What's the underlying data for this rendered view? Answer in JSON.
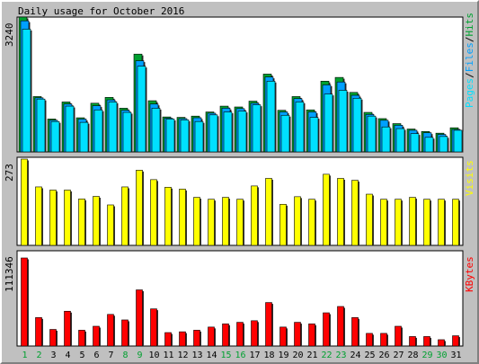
{
  "title": "Daily usage for October 2016",
  "colors": {
    "hits": "#00a030",
    "files": "#00a0ff",
    "pages": "#00e0ff",
    "visits": "#ffff00",
    "kbytes": "#ff0000",
    "weekend_label": "#00a030",
    "weekday_label": "#000000"
  },
  "chart_data": [
    {
      "type": "bar",
      "name_label_parts": [
        "Pages",
        "/",
        "Files",
        "/",
        "Hits"
      ],
      "max_label": "3240",
      "ymax": 3240,
      "categories": [
        "1",
        "2",
        "3",
        "4",
        "5",
        "6",
        "7",
        "8",
        "9",
        "10",
        "11",
        "12",
        "13",
        "14",
        "15",
        "16",
        "17",
        "18",
        "19",
        "20",
        "21",
        "22",
        "23",
        "24",
        "25",
        "26",
        "27",
        "28",
        "29",
        "30",
        "31"
      ],
      "weekend_days": [
        "1",
        "2",
        "8",
        "9",
        "15",
        "16",
        "22",
        "23",
        "29",
        "30"
      ],
      "series": [
        {
          "name": "Hits",
          "values": [
            3240,
            1330,
            790,
            1200,
            820,
            1170,
            1310,
            1050,
            2350,
            1230,
            840,
            830,
            860,
            960,
            1100,
            1080,
            1220,
            1870,
            1000,
            1330,
            1010,
            1700,
            1790,
            1430,
            950,
            800,
            680,
            550,
            490,
            450,
            580
          ]
        },
        {
          "name": "Files",
          "values": [
            3150,
            1300,
            760,
            1150,
            790,
            1110,
            1250,
            1000,
            2190,
            1150,
            810,
            800,
            820,
            930,
            1050,
            1040,
            1170,
            1800,
            960,
            1280,
            960,
            1610,
            1680,
            1360,
            900,
            760,
            640,
            520,
            460,
            420,
            540
          ]
        },
        {
          "name": "Pages",
          "values": [
            2950,
            1270,
            730,
            1100,
            710,
            1010,
            1200,
            950,
            2060,
            1050,
            790,
            770,
            730,
            890,
            960,
            980,
            1130,
            1700,
            880,
            1200,
            830,
            1390,
            1480,
            1290,
            860,
            600,
            560,
            440,
            350,
            370,
            520
          ]
        }
      ]
    },
    {
      "type": "bar",
      "name_label": "Visits",
      "max_label": "273",
      "ymax": 273,
      "categories": [
        "1",
        "2",
        "3",
        "4",
        "5",
        "6",
        "7",
        "8",
        "9",
        "10",
        "11",
        "12",
        "13",
        "14",
        "15",
        "16",
        "17",
        "18",
        "19",
        "20",
        "21",
        "22",
        "23",
        "24",
        "25",
        "26",
        "27",
        "28",
        "29",
        "30",
        "31"
      ],
      "series": [
        {
          "name": "Visits",
          "values": [
            273,
            185,
            175,
            175,
            147,
            155,
            128,
            185,
            238,
            208,
            184,
            178,
            152,
            146,
            152,
            146,
            188,
            212,
            130,
            154,
            146,
            225,
            212,
            206,
            162,
            146,
            146,
            152,
            146,
            146,
            146
          ]
        }
      ]
    },
    {
      "type": "bar",
      "name_label": "KBytes",
      "max_label": "111346",
      "ymax": 111346,
      "categories": [
        "1",
        "2",
        "3",
        "4",
        "5",
        "6",
        "7",
        "8",
        "9",
        "10",
        "11",
        "12",
        "13",
        "14",
        "15",
        "16",
        "17",
        "18",
        "19",
        "20",
        "21",
        "22",
        "23",
        "24",
        "25",
        "26",
        "27",
        "28",
        "29",
        "30",
        "31"
      ],
      "series": [
        {
          "name": "KBytes",
          "values": [
            111346,
            36000,
            21000,
            44000,
            20000,
            25000,
            40000,
            33000,
            71000,
            47000,
            17000,
            18000,
            20000,
            24000,
            28000,
            30000,
            32000,
            55000,
            24000,
            30000,
            28000,
            42000,
            50000,
            36000,
            16000,
            16000,
            25000,
            12000,
            12000,
            8000,
            13000
          ]
        }
      ]
    }
  ]
}
